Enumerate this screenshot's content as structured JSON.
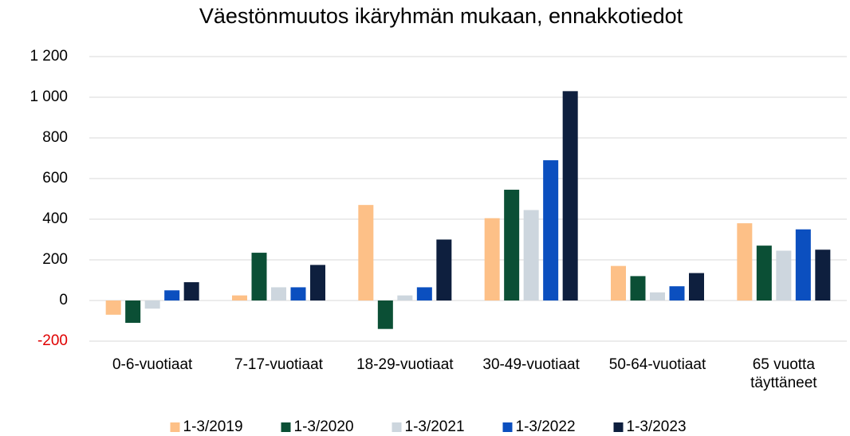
{
  "chart_data": {
    "type": "bar",
    "title": "Väestönmuutos ikäryhmän mukaan, ennakkotiedot",
    "categories": [
      "0-6-vuotiaat",
      "7-17-vuotiaat",
      "18-29-vuotiaat",
      "30-49-vuotiaat",
      "50-64-vuotiaat",
      "65 vuotta täyttäneet"
    ],
    "series": [
      {
        "name": "1-3/2019",
        "color": "#fdc087",
        "values": [
          -70,
          25,
          470,
          405,
          170,
          380
        ]
      },
      {
        "name": "1-3/2020",
        "color": "#0b4f35",
        "values": [
          -110,
          235,
          -140,
          545,
          120,
          270
        ]
      },
      {
        "name": "1-3/2021",
        "color": "#cdd6de",
        "values": [
          -40,
          65,
          25,
          445,
          40,
          245
        ]
      },
      {
        "name": "1-3/2022",
        "color": "#0b4fbf",
        "values": [
          50,
          65,
          65,
          690,
          70,
          350
        ]
      },
      {
        "name": "1-3/2023",
        "color": "#0e1f3e",
        "values": [
          90,
          175,
          300,
          1030,
          135,
          250
        ]
      }
    ],
    "ylim": [
      -200,
      1200
    ],
    "yticks": [
      {
        "value": -200,
        "label": "-200"
      },
      0,
      200,
      400,
      600,
      800,
      {
        "value": 1000,
        "label": "1 000"
      },
      {
        "value": 1200,
        "label": "1 200"
      }
    ],
    "negative_tick_color": "#e00000",
    "grid": true,
    "legend": "bottom"
  }
}
